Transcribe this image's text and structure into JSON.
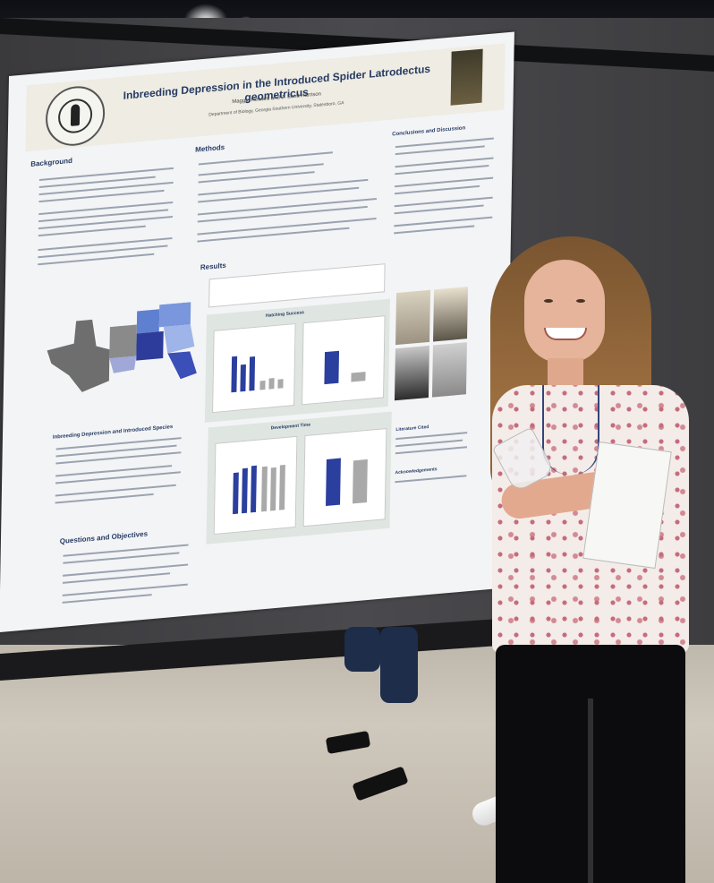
{
  "poster": {
    "title": "Inbreeding Depression in the Introduced Spider Latrodectus geometricus",
    "authors": "Maggie Howard and J. Scott Harrison",
    "department": "Department of Biology, Georgia Southern University, Statesboro, GA",
    "sections": {
      "background": "Background",
      "methods": "Methods",
      "results": "Results",
      "conclusions": "Conclusions and Discussion",
      "inbreeding": "Inbreeding Depression and Introduced Species",
      "questions": "Questions and Objectives",
      "literature": "Literature Cited",
      "acknowledgements": "Acknowledgements",
      "hatching": "Hatching Success",
      "development": "Development Time"
    },
    "colors": {
      "title": "#263b63",
      "bars_primary": "#2b3f9e",
      "bars_secondary": "#a9a9a9"
    }
  }
}
